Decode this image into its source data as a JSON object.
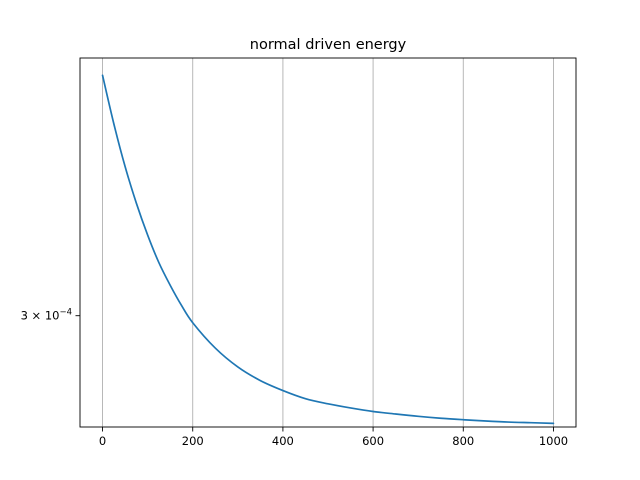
{
  "chart_data": {
    "type": "line",
    "title": "normal driven energy",
    "xlabel": "",
    "ylabel": "",
    "xlim": [
      -50,
      1050
    ],
    "ylim": [
      0.0002425,
      0.000491
    ],
    "y_scale": "log",
    "grid": {
      "x": true,
      "y": false
    },
    "x_ticks": [
      0,
      200,
      400,
      600,
      800,
      1000
    ],
    "y_tick": {
      "value": 0.0003,
      "base": "3 × 10",
      "exponent": "−4"
    },
    "series": [
      {
        "color": "#1f77b4",
        "x": [
          0,
          25,
          50,
          75,
          100,
          125,
          150,
          175,
          200,
          250,
          300,
          350,
          400,
          450,
          500,
          550,
          600,
          650,
          700,
          750,
          800,
          850,
          900,
          950,
          1000
        ],
        "y": [
          0.000475,
          0.000433,
          0.000399,
          0.000372,
          0.00035,
          0.000332,
          0.000318,
          0.000306,
          0.000296,
          0.000282,
          0.000272,
          0.000265,
          0.00026,
          0.000256,
          0.0002535,
          0.0002515,
          0.0002498,
          0.0002486,
          0.0002475,
          0.0002466,
          0.0002459,
          0.0002453,
          0.0002448,
          0.0002445,
          0.0002442
        ]
      }
    ]
  }
}
